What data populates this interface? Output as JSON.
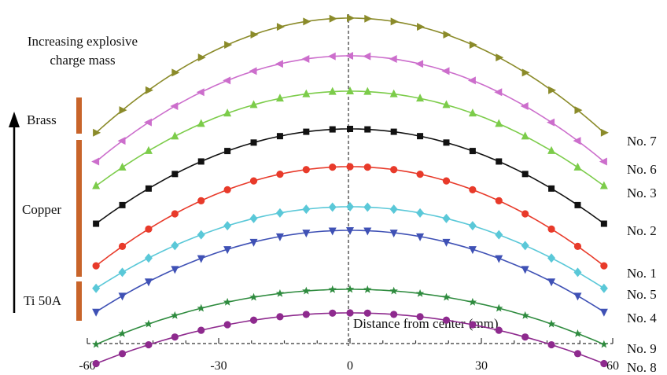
{
  "chart_data": {
    "type": "line",
    "xlabel": "Distance from center (mm)",
    "xlim": [
      -60,
      60
    ],
    "xticks": [
      -60,
      -30,
      0,
      30,
      60
    ],
    "xtick_labels": [
      "-60",
      "-30",
      "0",
      "30",
      "60"
    ],
    "annotation": {
      "line1": "Increasing explosive",
      "line2": "charge mass"
    },
    "material_groups": [
      {
        "name": "Brass"
      },
      {
        "name": "Copper"
      },
      {
        "name": "Ti 50A"
      }
    ],
    "x": [
      -58,
      -52,
      -46,
      -40,
      -34,
      -28,
      -22,
      -16,
      -10,
      -4,
      0,
      4,
      10,
      16,
      22,
      28,
      34,
      40,
      46,
      52,
      58
    ],
    "series": [
      {
        "name": "No. 7",
        "color": "#8b8b2a",
        "marker": "triangle-right",
        "edge": 7.2,
        "peak": 12.4
      },
      {
        "name": "No. 6",
        "color": "#cc6ecc",
        "marker": "triangle-left",
        "edge": 6.0,
        "peak": 10.8
      },
      {
        "name": "No. 3",
        "color": "#7ccc4a",
        "marker": "triangle-up",
        "edge": 5.0,
        "peak": 9.3
      },
      {
        "name": "No. 2",
        "color": "#111111",
        "marker": "square",
        "edge": 3.4,
        "peak": 7.7
      },
      {
        "name": "No. 1",
        "color": "#e83a2a",
        "marker": "circle",
        "edge": 1.6,
        "peak": 6.1
      },
      {
        "name": "No. 5",
        "color": "#5ac8d8",
        "marker": "diamond",
        "edge": 0.7,
        "peak": 4.4
      },
      {
        "name": "No. 4",
        "color": "#3f51b5",
        "marker": "triangle-down",
        "edge": -0.3,
        "peak": 3.4
      },
      {
        "name": "No. 9",
        "color": "#2e8b3e",
        "marker": "star",
        "edge": -1.6,
        "peak": 0.9
      },
      {
        "name": "No. 8",
        "color": "#8e2a8e",
        "marker": "circle",
        "edge": -2.4,
        "peak": -0.1
      }
    ]
  }
}
